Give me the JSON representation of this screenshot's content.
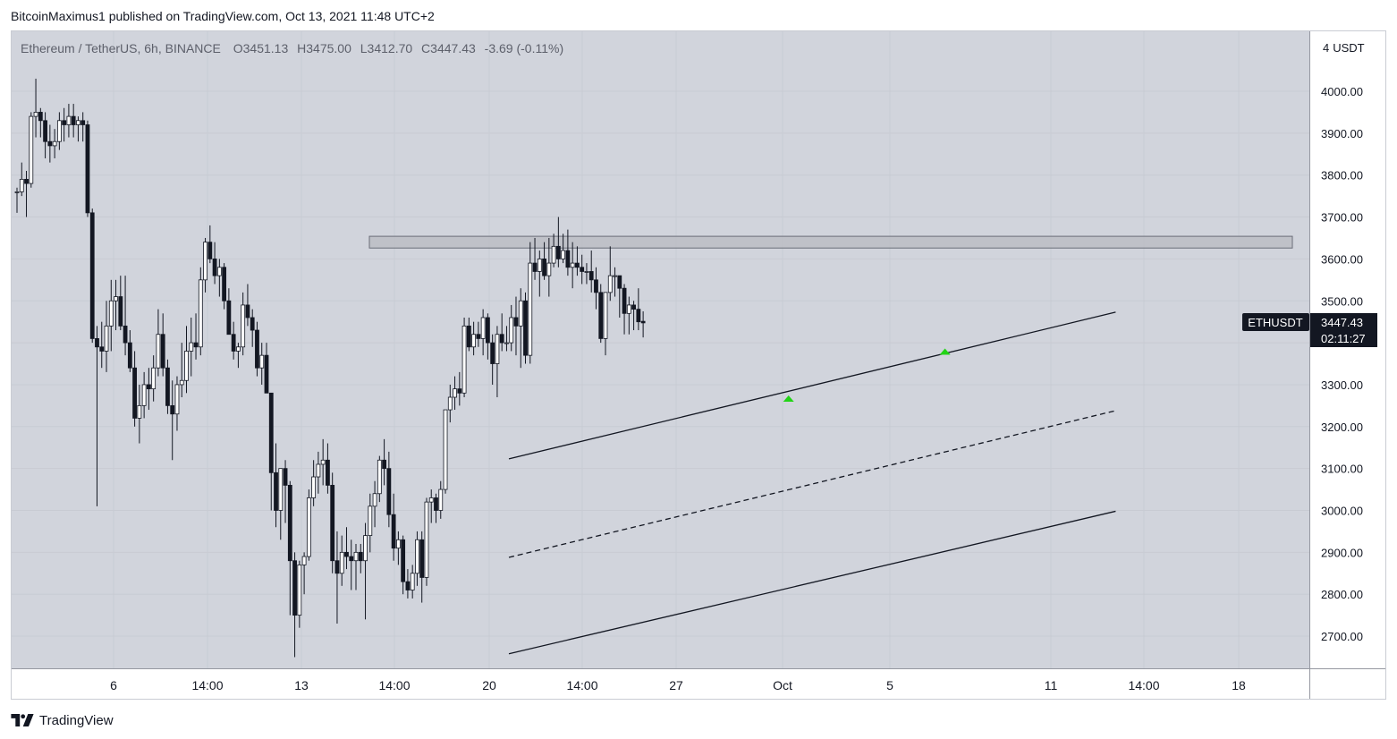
{
  "publisher_line": "BitcoinMaximus1 published on TradingView.com, Oct 13, 2021 11:48 UTC+2",
  "footer": {
    "brand": "TradingView",
    "logo_icon": "tradingview-logo-icon"
  },
  "legend": {
    "symbol": "Ethereum / TetherUS, 6h, BINANCE",
    "o_label": "O",
    "o_value": "3451.13",
    "h_label": "H",
    "h_value": "3475.00",
    "l_label": "L",
    "l_value": "3412.70",
    "c_label": "C",
    "c_value": "3447.43",
    "change": "-3.69 (-0.11%)"
  },
  "price_axis": {
    "currency": "USDT",
    "currency_icon": "lock-icon",
    "ticks": [
      "4000.00",
      "3900.00",
      "3800.00",
      "3700.00",
      "3600.00",
      "3500.00",
      "3400.00",
      "3300.00",
      "3200.00",
      "3100.00",
      "3000.00",
      "2900.00",
      "2800.00",
      "2700.00"
    ]
  },
  "price_label": {
    "symbol": "ETHUSDT",
    "price": "3447.43",
    "countdown": "02:11:27"
  },
  "time_axis": [
    "6",
    "14:00",
    "13",
    "14:00",
    "20",
    "14:00",
    "27",
    "Oct",
    "5",
    "11",
    "14:00",
    "18"
  ],
  "colors": {
    "background": "#d1d4dc",
    "candle_up": "#ffffff",
    "candle_down": "#131722",
    "candle_outline": "#131722",
    "zone_fill": "#b8bbc2",
    "arrow": "#22d416",
    "label_bg": "#131722"
  },
  "chart_data": {
    "type": "candlestick",
    "title": "Ethereum / TetherUS, 6h, BINANCE",
    "ylim": [
      2650,
      4150
    ],
    "x_ticks": [
      "6",
      "14:00",
      "13",
      "14:00",
      "20",
      "14:00",
      "27",
      "Oct",
      "5",
      "11",
      "14:00",
      "18"
    ],
    "resistance_zone": [
      3626,
      3654
    ],
    "channel": {
      "upper": [
        [
          0,
          3123
        ],
        [
          128,
          3473
        ]
      ],
      "middle": [
        [
          0,
          2888
        ],
        [
          128,
          3238
        ]
      ],
      "lower": [
        [
          0,
          2658
        ],
        [
          128,
          2998
        ]
      ]
    },
    "support_arrows": [
      [
        59,
        3268
      ],
      [
        92,
        3380
      ]
    ],
    "last_price": 3447.43,
    "candles": [
      [
        3760,
        3770,
        3710,
        3760
      ],
      [
        3760,
        3830,
        3750,
        3790
      ],
      [
        3790,
        3810,
        3700,
        3780
      ],
      [
        3780,
        3950,
        3770,
        3940
      ],
      [
        3940,
        4030,
        3890,
        3950
      ],
      [
        3950,
        3960,
        3890,
        3930
      ],
      [
        3930,
        3950,
        3840,
        3880
      ],
      [
        3880,
        3920,
        3830,
        3870
      ],
      [
        3870,
        3910,
        3840,
        3880
      ],
      [
        3880,
        3950,
        3860,
        3930
      ],
      [
        3930,
        3960,
        3880,
        3920
      ],
      [
        3920,
        3970,
        3890,
        3940
      ],
      [
        3940,
        3970,
        3890,
        3920
      ],
      [
        3920,
        3940,
        3880,
        3930
      ],
      [
        3930,
        3950,
        3880,
        3920
      ],
      [
        3920,
        3930,
        3700,
        3710
      ],
      [
        3710,
        3720,
        3400,
        3410
      ],
      [
        3410,
        3440,
        3010,
        3390
      ],
      [
        3390,
        3450,
        3340,
        3380
      ],
      [
        3380,
        3500,
        3330,
        3440
      ],
      [
        3440,
        3550,
        3380,
        3500
      ],
      [
        3500,
        3550,
        3430,
        3510
      ],
      [
        3510,
        3560,
        3430,
        3440
      ],
      [
        3440,
        3560,
        3370,
        3400
      ],
      [
        3400,
        3430,
        3330,
        3340
      ],
      [
        3340,
        3380,
        3200,
        3220
      ],
      [
        3220,
        3300,
        3160,
        3250
      ],
      [
        3250,
        3330,
        3220,
        3300
      ],
      [
        3300,
        3340,
        3240,
        3290
      ],
      [
        3290,
        3370,
        3260,
        3340
      ],
      [
        3340,
        3480,
        3320,
        3420
      ],
      [
        3420,
        3470,
        3320,
        3340
      ],
      [
        3340,
        3360,
        3230,
        3250
      ],
      [
        3250,
        3310,
        3120,
        3230
      ],
      [
        3230,
        3320,
        3190,
        3300
      ],
      [
        3300,
        3400,
        3270,
        3310
      ],
      [
        3310,
        3440,
        3280,
        3380
      ],
      [
        3380,
        3460,
        3320,
        3400
      ],
      [
        3400,
        3470,
        3360,
        3390
      ],
      [
        3390,
        3580,
        3370,
        3550
      ],
      [
        3550,
        3650,
        3520,
        3640
      ],
      [
        3640,
        3680,
        3590,
        3600
      ],
      [
        3600,
        3640,
        3540,
        3560
      ],
      [
        3560,
        3600,
        3510,
        3580
      ],
      [
        3580,
        3590,
        3480,
        3500
      ],
      [
        3500,
        3530,
        3420,
        3420
      ],
      [
        3420,
        3450,
        3360,
        3380
      ],
      [
        3380,
        3400,
        3340,
        3390
      ],
      [
        3390,
        3520,
        3370,
        3490
      ],
      [
        3490,
        3540,
        3440,
        3460
      ],
      [
        3460,
        3480,
        3390,
        3430
      ],
      [
        3430,
        3450,
        3320,
        3340
      ],
      [
        3340,
        3400,
        3300,
        3370
      ],
      [
        3370,
        3400,
        3280,
        3280
      ],
      [
        3280,
        3280,
        3000,
        3090
      ],
      [
        3090,
        3160,
        2960,
        3000
      ],
      [
        3000,
        3100,
        2930,
        3100
      ],
      [
        3100,
        3120,
        2970,
        3060
      ],
      [
        3060,
        3070,
        2750,
        2880
      ],
      [
        2880,
        2900,
        2650,
        2750
      ],
      [
        2750,
        2880,
        2720,
        2870
      ],
      [
        2870,
        2900,
        2800,
        2890
      ],
      [
        2890,
        3050,
        2880,
        3030
      ],
      [
        3030,
        3120,
        3010,
        3080
      ],
      [
        3080,
        3140,
        3040,
        3110
      ],
      [
        3110,
        3170,
        3060,
        3120
      ],
      [
        3120,
        3160,
        3040,
        3060
      ],
      [
        3060,
        3090,
        2850,
        2880
      ],
      [
        2880,
        2950,
        2730,
        2850
      ],
      [
        2850,
        2940,
        2820,
        2900
      ],
      [
        2900,
        2960,
        2860,
        2890
      ],
      [
        2890,
        2930,
        2810,
        2880
      ],
      [
        2880,
        2920,
        2810,
        2900
      ],
      [
        2900,
        2920,
        2850,
        2880
      ],
      [
        2880,
        2970,
        2740,
        2940
      ],
      [
        2940,
        3040,
        2900,
        3010
      ],
      [
        3010,
        3070,
        2960,
        3040
      ],
      [
        3040,
        3130,
        3020,
        3120
      ],
      [
        3120,
        3170,
        3060,
        3100
      ],
      [
        3100,
        3140,
        2960,
        2990
      ],
      [
        2990,
        3040,
        2880,
        2910
      ],
      [
        2910,
        2950,
        2870,
        2930
      ],
      [
        2930,
        2940,
        2800,
        2830
      ],
      [
        2830,
        2860,
        2790,
        2810
      ],
      [
        2810,
        2870,
        2790,
        2850
      ],
      [
        2850,
        2950,
        2820,
        2930
      ],
      [
        2930,
        2950,
        2780,
        2840
      ],
      [
        2840,
        3030,
        2820,
        3020
      ],
      [
        3020,
        3050,
        2970,
        3030
      ],
      [
        3030,
        3040,
        2970,
        3000
      ],
      [
        3000,
        3070,
        2980,
        3050
      ],
      [
        3050,
        3240,
        3040,
        3240
      ],
      [
        3240,
        3300,
        3210,
        3270
      ],
      [
        3270,
        3320,
        3240,
        3290
      ],
      [
        3290,
        3330,
        3250,
        3280
      ],
      [
        3280,
        3460,
        3270,
        3440
      ],
      [
        3440,
        3460,
        3380,
        3390
      ],
      [
        3390,
        3450,
        3370,
        3420
      ],
      [
        3420,
        3450,
        3390,
        3410
      ],
      [
        3410,
        3480,
        3370,
        3460
      ],
      [
        3460,
        3470,
        3360,
        3400
      ],
      [
        3400,
        3420,
        3300,
        3350
      ],
      [
        3350,
        3440,
        3270,
        3420
      ],
      [
        3420,
        3470,
        3380,
        3400
      ],
      [
        3400,
        3440,
        3380,
        3400
      ],
      [
        3400,
        3490,
        3380,
        3460
      ],
      [
        3460,
        3510,
        3370,
        3440
      ],
      [
        3440,
        3530,
        3340,
        3500
      ],
      [
        3500,
        3520,
        3350,
        3370
      ],
      [
        3370,
        3640,
        3350,
        3590
      ],
      [
        3590,
        3650,
        3550,
        3570
      ],
      [
        3570,
        3620,
        3510,
        3600
      ],
      [
        3600,
        3640,
        3550,
        3560
      ],
      [
        3560,
        3650,
        3510,
        3590
      ],
      [
        3590,
        3660,
        3580,
        3630
      ],
      [
        3630,
        3700,
        3580,
        3600
      ],
      [
        3600,
        3660,
        3590,
        3620
      ],
      [
        3620,
        3670,
        3560,
        3580
      ],
      [
        3580,
        3640,
        3530,
        3590
      ],
      [
        3590,
        3630,
        3560,
        3580
      ],
      [
        3580,
        3610,
        3540,
        3570
      ],
      [
        3570,
        3590,
        3540,
        3570
      ],
      [
        3570,
        3620,
        3520,
        3550
      ],
      [
        3550,
        3580,
        3480,
        3520
      ],
      [
        3520,
        3540,
        3400,
        3410
      ],
      [
        3410,
        3520,
        3370,
        3520
      ],
      [
        3520,
        3630,
        3500,
        3560
      ],
      [
        3560,
        3580,
        3510,
        3560
      ],
      [
        3560,
        3560,
        3460,
        3530
      ],
      [
        3530,
        3540,
        3420,
        3470
      ],
      [
        3470,
        3510,
        3420,
        3490
      ],
      [
        3490,
        3500,
        3430,
        3480
      ],
      [
        3480,
        3530,
        3430,
        3450
      ],
      [
        3451.13,
        3475.0,
        3412.7,
        3447.43
      ]
    ]
  }
}
